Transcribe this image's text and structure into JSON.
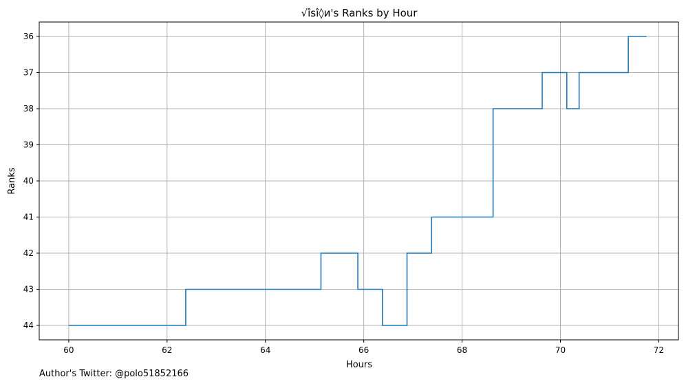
{
  "chart_data": {
    "type": "line",
    "style": "step",
    "title": "√îsî◊и's Ranks by Hour",
    "xlabel": "Hours",
    "ylabel": "Ranks",
    "xlim": [
      59.4,
      72.4
    ],
    "ylim": [
      44.4,
      35.6
    ],
    "y_inverted": true,
    "grid": true,
    "x_ticks": [
      60,
      62,
      64,
      66,
      68,
      70,
      72
    ],
    "y_ticks": [
      36,
      37,
      38,
      39,
      40,
      41,
      42,
      43,
      44
    ],
    "series": [
      {
        "color": "#1f77b4",
        "x": [
          60.0,
          62.38,
          65.13,
          65.88,
          66.38,
          66.88,
          67.38,
          68.63,
          69.63,
          70.13,
          70.38,
          71.38,
          71.75
        ],
        "y": [
          44,
          43,
          42,
          43,
          44,
          42,
          41,
          38,
          37,
          38,
          37,
          36,
          36
        ]
      }
    ]
  },
  "footer": {
    "author_note": "Author's Twitter: @polo51852166"
  }
}
